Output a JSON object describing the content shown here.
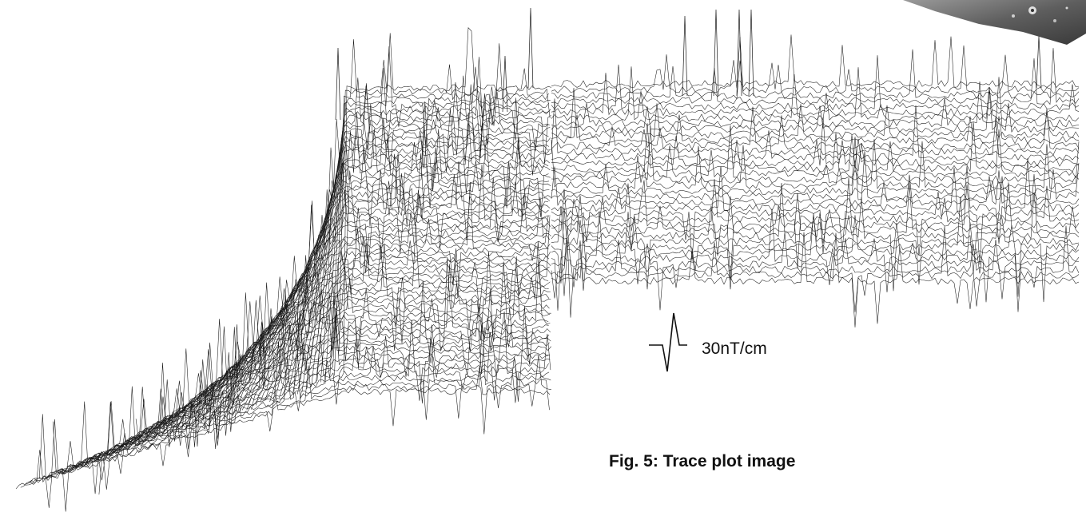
{
  "figure": {
    "scale_bar_label": "30nT/cm",
    "caption": "Fig. 5: Trace plot image"
  },
  "colors": {
    "background": "#ffffff",
    "trace": "#1a1a1a",
    "photo": "#6f6f6f"
  }
}
